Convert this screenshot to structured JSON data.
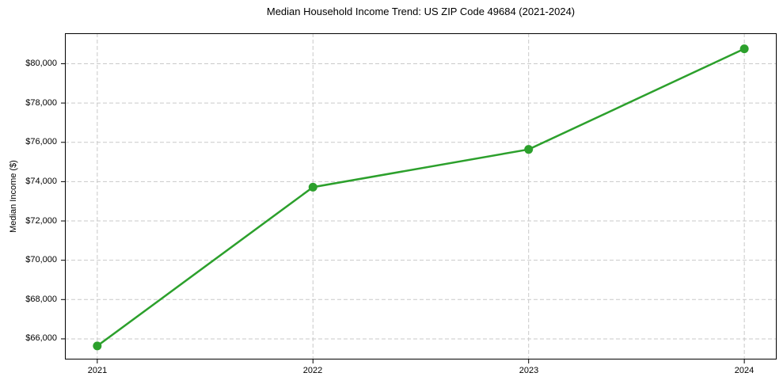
{
  "chart_data": {
    "type": "line",
    "title": "Median Household Income Trend: US ZIP Code 49684 (2021-2024)",
    "ylabel": "Median Income ($)",
    "xlabel": "",
    "x": [
      2021,
      2022,
      2023,
      2024
    ],
    "values": [
      65640,
      73720,
      75640,
      80760
    ],
    "xticks": [
      2021,
      2022,
      2023,
      2024
    ],
    "xtick_labels": [
      "2021",
      "2022",
      "2023",
      "2024"
    ],
    "yticks": [
      66000,
      68000,
      70000,
      72000,
      74000,
      76000,
      78000,
      80000
    ],
    "ytick_labels": [
      "$66,000",
      "$68,000",
      "$70,000",
      "$72,000",
      "$74,000",
      "$76,000",
      "$78,000",
      "$80,000"
    ],
    "ytick_prefix": "$",
    "xlim": [
      2020.85,
      2024.15
    ],
    "ylim": [
      64950,
      81550
    ],
    "grid": true,
    "grid_style": "dashed",
    "legend_position": "none",
    "line_color": "#2ca02c",
    "marker": "circle",
    "grid_color": "#c9c9c9",
    "axis_color": "#000000",
    "text_color": "#000000",
    "background_color": "#ffffff"
  }
}
